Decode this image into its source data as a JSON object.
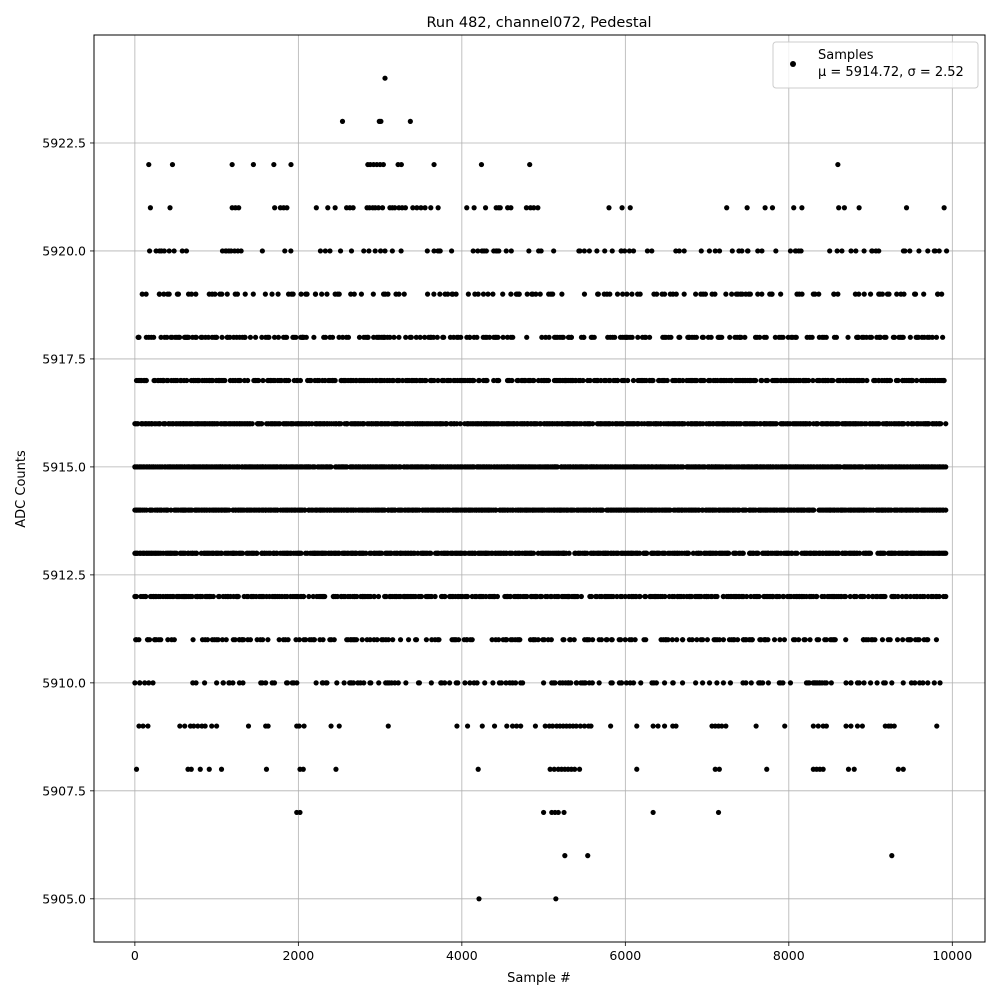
{
  "chart_data": {
    "type": "scatter",
    "title": "Run 482, channel072, Pedestal",
    "xlabel": "Sample #",
    "ylabel": "ADC Counts",
    "xlim": [
      -500,
      10400
    ],
    "ylim": [
      5904,
      5925
    ],
    "xticks": [
      0,
      2000,
      4000,
      6000,
      8000,
      10000
    ],
    "xtick_labels": [
      "0",
      "2000",
      "4000",
      "6000",
      "8000",
      "10000"
    ],
    "yticks": [
      5905.0,
      5907.5,
      5910.0,
      5912.5,
      5915.0,
      5917.5,
      5920.0,
      5922.5
    ],
    "ytick_labels": [
      "5905.0",
      "5907.5",
      "5910.0",
      "5912.5",
      "5915.0",
      "5917.5",
      "5920.0",
      "5922.5"
    ],
    "grid": true,
    "legend": {
      "position": "top-right",
      "entries": [
        {
          "label": "Samples",
          "label_line2": "μ = 5914.72, σ = 2.52",
          "marker": "circle",
          "color": "#000000"
        }
      ]
    },
    "marker_color": "#000000",
    "n_samples": 10000,
    "mean": 5914.72,
    "std": 2.52,
    "sample_x_range": [
      0,
      9900
    ],
    "levels": [
      {
        "y": 5924,
        "density": 0.0,
        "x": [
          3060
        ]
      },
      {
        "y": 5923,
        "density": 0.0,
        "x": [
          2540,
          2990,
          3010,
          3370
        ]
      },
      {
        "y": 5922,
        "density": 0.0,
        "x": [
          170,
          460,
          1190,
          1450,
          1700,
          1910,
          2850,
          2880,
          2920,
          2960,
          3000,
          3040,
          3220,
          3260,
          3660,
          4240,
          4830,
          8600
        ]
      },
      {
        "y": 5921,
        "density": 0.0,
        "x": [
          190,
          430,
          1190,
          1230,
          1270,
          1710,
          1780,
          1820,
          1860,
          2220,
          2360,
          2450,
          2590,
          2630,
          2670,
          2840,
          2870,
          2910,
          2940,
          2980,
          3030,
          3120,
          3150,
          3180,
          3230,
          3270,
          3310,
          3400,
          3450,
          3500,
          3550,
          3620,
          3710,
          4060,
          4150,
          4290,
          4420,
          4450,
          4470,
          4560,
          4600,
          4790,
          4840,
          4880,
          4930,
          5800,
          5960,
          6060,
          7240,
          7490,
          7710,
          7800,
          8060,
          8160,
          8610,
          8680,
          8860,
          9440,
          9900
        ]
      },
      {
        "y": 5920,
        "density": 0.1,
        "x": [
          180,
          260,
          360,
          420,
          480,
          580,
          1110,
          1150,
          1220,
          1260,
          1300,
          2270,
          2330,
          2650,
          2800,
          2940,
          3060,
          3150,
          4300,
          4390,
          4430,
          4820,
          4970,
          5560,
          5840,
          5950,
          6050,
          6100,
          6270,
          6660,
          6720,
          7100,
          7390,
          7500,
          7620,
          8020,
          8080,
          8150,
          8500,
          8650,
          8820,
          9020,
          9100,
          9420,
          9480,
          9700,
          9780,
          9840,
          9930
        ]
      },
      {
        "y": 5919,
        "density": 0.15,
        "x": [
          90,
          300,
          400,
          520,
          910,
          980,
          1040,
          1350,
          1880,
          2090,
          2210,
          2350,
          2450,
          2500,
          4080,
          4200,
          4320,
          4380,
          4500,
          4600,
          4700,
          4800,
          5090,
          5500,
          5670,
          5810,
          6150,
          6350,
          6450,
          6550,
          6720,
          6860,
          6980,
          7230,
          7430,
          7510,
          7620,
          7790,
          7900,
          8100,
          8300,
          8550,
          8600,
          9000,
          9100,
          9320,
          9550,
          9650,
          9820,
          9870
        ]
      },
      {
        "y": 5918,
        "density": 0.35,
        "x": [
          40,
          140,
          320,
          640,
          740,
          900,
          1000,
          2050,
          2190,
          3900,
          4150,
          5340,
          5490,
          5620,
          5870,
          6010,
          6210,
          7050,
          7400,
          7700,
          8850,
          9120,
          9400
        ]
      },
      {
        "y": 5917,
        "density": 0.6,
        "x": [
          20,
          140,
          350,
          690,
          1080,
          1480,
          1950,
          2450,
          3000,
          3560,
          4100,
          4760,
          5150,
          5270,
          5800,
          6300,
          6800,
          7300,
          7800,
          8200,
          8700,
          9100,
          9500,
          9900
        ]
      },
      {
        "y": 5916,
        "density": 0.85,
        "x": [
          0,
          200,
          600,
          1000,
          1500,
          2000,
          2600,
          3200,
          3800,
          4300,
          4800,
          5300,
          5700,
          6200,
          6700,
          7200,
          7700,
          8200,
          8700,
          9200,
          9700,
          9920
        ]
      },
      {
        "y": 5915,
        "density": 0.95,
        "x": [
          0,
          180,
          550,
          1050,
          1560,
          2100,
          2550,
          3050,
          3650,
          4200,
          4700,
          5150,
          5600,
          6100,
          6600,
          7100,
          7600,
          8100,
          8600,
          9100,
          9600,
          9920
        ]
      },
      {
        "y": 5914,
        "density": 0.9,
        "x": [
          0,
          190,
          600,
          1100,
          1600,
          2050,
          2600,
          3150,
          3700,
          4250,
          4800,
          5200,
          5700,
          6150,
          6700,
          7150,
          7650,
          8150,
          8650,
          9150,
          9650,
          9920
        ]
      },
      {
        "y": 5913,
        "density": 0.8,
        "x": [
          0,
          210,
          650,
          1200,
          1700,
          2200,
          2700,
          3250,
          3750,
          4300,
          4850,
          5250,
          5750,
          6250,
          6750,
          7250,
          7750,
          8250,
          8750,
          9250,
          9750,
          9920
        ]
      },
      {
        "y": 5912,
        "density": 0.6,
        "x": [
          0,
          230,
          700,
          1250,
          1800,
          2300,
          2800,
          3300,
          3850,
          4400,
          4900,
          5300,
          5800,
          6300,
          6800,
          7300,
          7800,
          8300,
          8800,
          9300,
          9800,
          9920
        ]
      },
      {
        "y": 5911,
        "density": 0.3,
        "x": [
          10,
          180,
          240,
          450,
          3020,
          3250,
          3900,
          3960,
          4370,
          4450,
          4540,
          4620,
          4680,
          4840,
          4900,
          5830,
          6120,
          6500,
          6700,
          7300,
          7450,
          7550,
          7700,
          8120,
          8200,
          9240,
          9330,
          9470,
          9550
        ]
      },
      {
        "y": 5910,
        "density": 0.15,
        "x": [
          0,
          60,
          120,
          170,
          1000,
          1080,
          1150,
          1540,
          1600,
          1680,
          2300,
          2350,
          2560,
          2640,
          2760,
          2800,
          3180,
          3790,
          3850,
          3950,
          4280,
          4380,
          4460,
          4540,
          4620,
          4720,
          5000,
          5100,
          5200,
          5300,
          5400,
          5500,
          5560,
          5680,
          5840,
          5950,
          6060,
          6100,
          6380,
          6480,
          6580,
          6700,
          6860,
          7030,
          7120,
          7200,
          7680,
          7900,
          8020,
          8250,
          8320,
          8380,
          8440,
          8520,
          8700,
          8760,
          8840,
          8920,
          9000,
          9080,
          9160,
          9260,
          9400,
          9500,
          9600,
          9700,
          9780,
          9850
        ]
      },
      {
        "y": 5909,
        "density": 0.0,
        "x": [
          50,
          100,
          160,
          550,
          610,
          680,
          720,
          770,
          820,
          860,
          940,
          1000,
          1390,
          1600,
          1630,
          1980,
          2010,
          2070,
          2400,
          2500,
          3100,
          3940,
          4070,
          4250,
          4400,
          4550,
          4620,
          4670,
          4720,
          4900,
          5020,
          5070,
          5110,
          5160,
          5200,
          5240,
          5280,
          5320,
          5360,
          5400,
          5450,
          5500,
          5550,
          5580,
          5820,
          6140,
          6340,
          6400,
          6480,
          6580,
          6620,
          7060,
          7100,
          7140,
          7180,
          7230,
          7600,
          7950,
          8300,
          8360,
          8420,
          8460,
          8700,
          8760,
          8840,
          8900,
          9180,
          9220,
          9250,
          9290,
          9810
        ]
      },
      {
        "y": 5908,
        "density": 0.0,
        "x": [
          20,
          650,
          690,
          800,
          910,
          1060,
          1610,
          2020,
          2060,
          2460,
          4200,
          5080,
          5130,
          5180,
          5220,
          5260,
          5300,
          5340,
          5380,
          5440,
          6140,
          7100,
          7150,
          7730,
          8300,
          8340,
          8380,
          8420,
          8730,
          8800,
          9340,
          9400
        ]
      },
      {
        "y": 5907,
        "density": 0.0,
        "x": [
          1980,
          2020,
          5000,
          5100,
          5140,
          5180,
          5250,
          6340,
          7140
        ]
      },
      {
        "y": 5906,
        "density": 0.0,
        "x": [
          5260,
          5540,
          9260
        ]
      },
      {
        "y": 5905,
        "density": 0.0,
        "x": [
          4210,
          5150
        ]
      }
    ]
  }
}
